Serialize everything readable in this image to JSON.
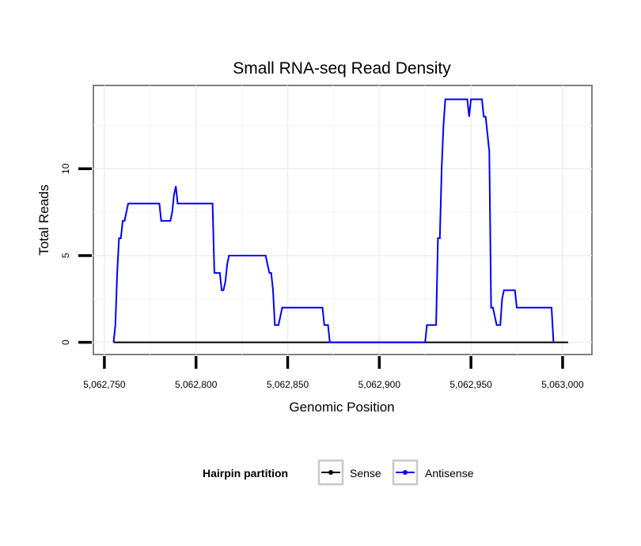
{
  "chart_data": {
    "type": "line",
    "title": "Small RNA-seq Read Density",
    "xlabel": "Genomic Position",
    "ylabel": "Total Reads",
    "xlim": [
      5062744,
      5063016
    ],
    "ylim": [
      -0.7,
      14.8
    ],
    "x_ticks": [
      5062750,
      5062800,
      5062850,
      5062900,
      5062950,
      5063000
    ],
    "x_tick_labels": [
      "5,062,750",
      "5,062,800",
      "5,062,850",
      "5,062,900",
      "5,062,950",
      "5,063,000"
    ],
    "y_ticks": [
      0,
      5,
      10
    ],
    "y_tick_labels": [
      "0",
      "5",
      "10"
    ],
    "grid": true,
    "legend": {
      "title": "Hairpin partition",
      "position": "bottom",
      "entries": [
        "Sense",
        "Antisense"
      ]
    },
    "series": [
      {
        "name": "Sense",
        "color": "#000000",
        "x": [
          5062755,
          5063003
        ],
        "y": [
          0,
          0
        ]
      },
      {
        "name": "Antisense",
        "color": "#0000ff",
        "x": [
          5062755,
          5062756,
          5062757,
          5062758,
          5062759,
          5062760,
          5062761,
          5062762,
          5062763,
          5062780,
          5062781,
          5062786,
          5062787,
          5062788,
          5062789,
          5062790,
          5062809,
          5062810,
          5062813,
          5062814,
          5062815,
          5062816,
          5062817,
          5062818,
          5062838,
          5062839,
          5062840,
          5062841,
          5062842,
          5062843,
          5062845,
          5062846,
          5062847,
          5062869,
          5062870,
          5062872,
          5062873,
          5062925,
          5062926,
          5062931,
          5062932,
          5062933,
          5062934,
          5062935,
          5062936,
          5062948,
          5062949,
          5062950,
          5062951,
          5062956,
          5062957,
          5062958,
          5062959,
          5062960,
          5062961,
          5062962,
          5062963,
          5062964,
          5062966,
          5062967,
          5062968,
          5062974,
          5062975,
          5062994,
          5062995
        ],
        "y": [
          0,
          1,
          4,
          6,
          6,
          7,
          7,
          7.5,
          8,
          8,
          7,
          7,
          7.5,
          8.5,
          9,
          8,
          8,
          4,
          4,
          3,
          3,
          3.5,
          4.5,
          5,
          5,
          4.5,
          4,
          4,
          3,
          1,
          1,
          1.5,
          2,
          2,
          1,
          1,
          0,
          0,
          1,
          1,
          6,
          6,
          10,
          12.5,
          14,
          14,
          13,
          14,
          14,
          14,
          13,
          13,
          12,
          11,
          2,
          2,
          1.5,
          1,
          1,
          2.5,
          3,
          3,
          2,
          2,
          0
        ]
      }
    ]
  }
}
